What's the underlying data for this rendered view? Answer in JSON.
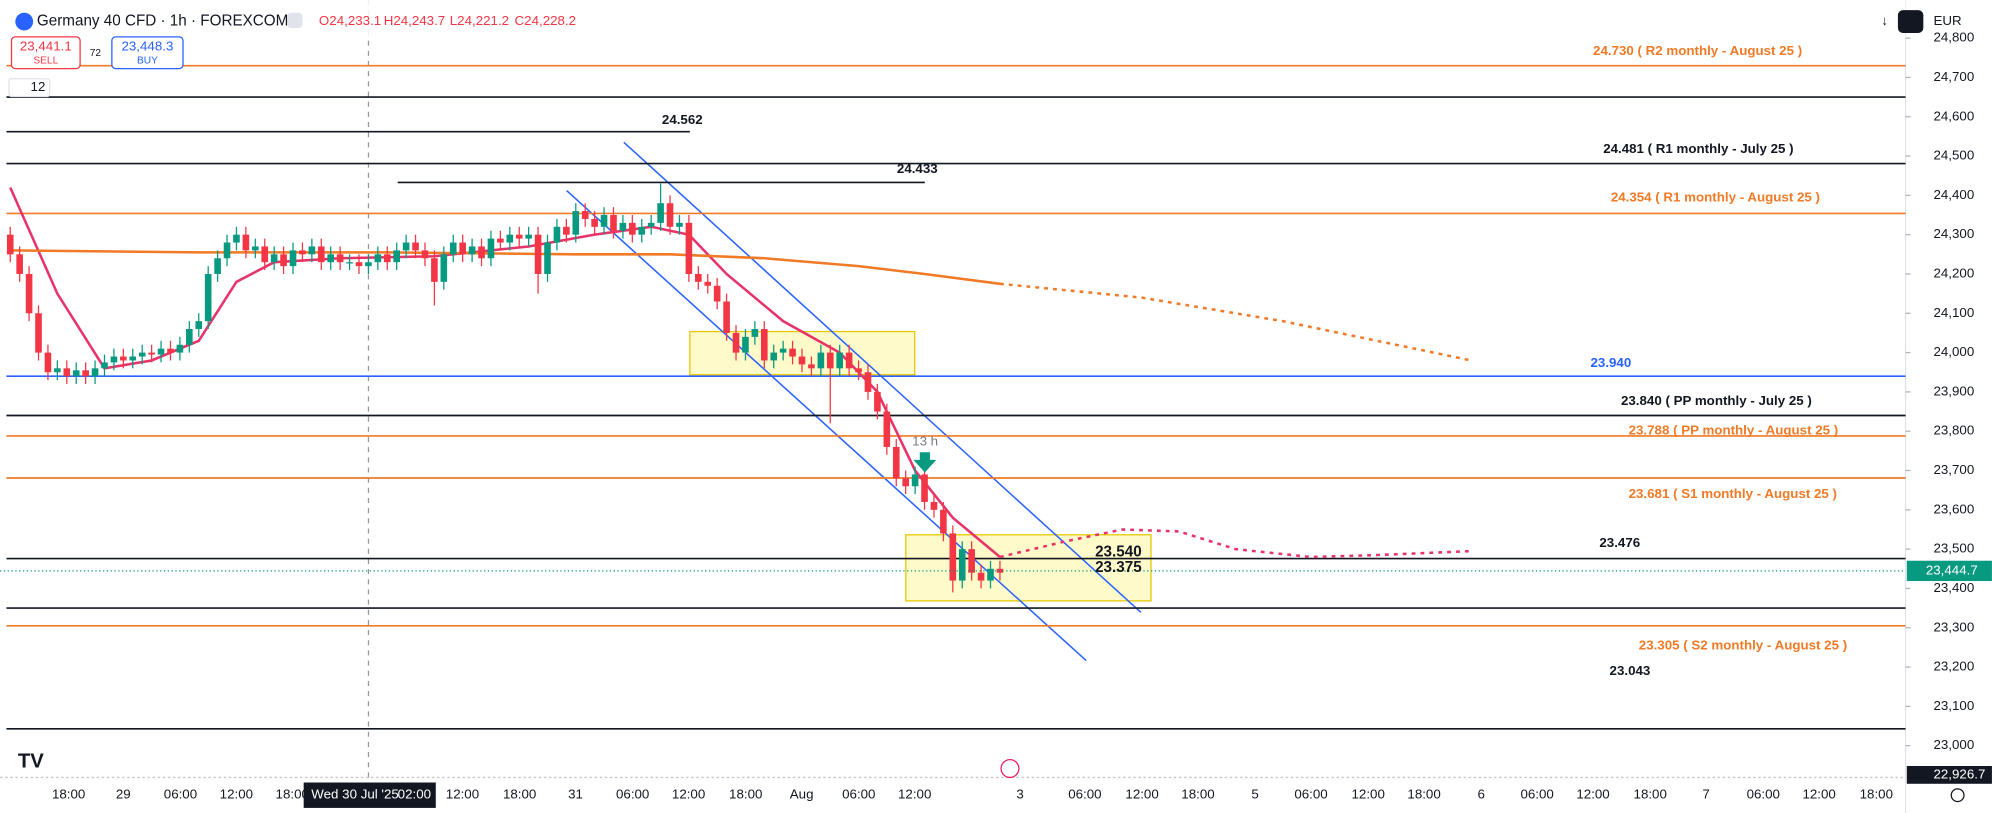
{
  "header": {
    "symbol": "Germany 40 CFD · 1h · FOREXCOM",
    "ohlc": [
      "O24,233.1",
      "H24,243.7",
      "L24,221.2",
      "C24,228.2"
    ],
    "sell_price": "23,441.1",
    "sell": "SELL",
    "spread": "72",
    "buy_price": "23,448.3",
    "buy": "BUY",
    "indicator_count": "12",
    "currency": "EUR"
  },
  "chart_data": {
    "type": "candlestick",
    "ylim": [
      22916,
      24897
    ],
    "yticks": [
      {
        "value": 23000,
        "label": "23,000"
      },
      {
        "value": 23100,
        "label": "23,100"
      },
      {
        "value": 23200,
        "label": "23,200"
      },
      {
        "value": 23300,
        "label": "23,300"
      },
      {
        "value": 23400,
        "label": "23,400"
      },
      {
        "value": 23500,
        "label": "23,500"
      },
      {
        "value": 23600,
        "label": "23,600"
      },
      {
        "value": 23700,
        "label": "23,700"
      },
      {
        "value": 23800,
        "label": "23,800"
      },
      {
        "value": 23900,
        "label": "23,900"
      },
      {
        "value": 24000,
        "label": "24,000"
      },
      {
        "value": 24100,
        "label": "24,100"
      },
      {
        "value": 24200,
        "label": "24,200"
      },
      {
        "value": 24300,
        "label": "24,300"
      },
      {
        "value": 24400,
        "label": "24,400"
      },
      {
        "value": 24500,
        "label": "24,500"
      },
      {
        "value": 24600,
        "label": "24,600"
      },
      {
        "value": 24700,
        "label": "24,700"
      },
      {
        "value": 24800,
        "label": "24,800"
      }
    ],
    "xtick_labels": [
      "18:00",
      "29",
      "06:00",
      "12:00",
      "18:00",
      "12:00",
      "18:00",
      "31",
      "06:00",
      "12:00",
      "18:00",
      "Aug",
      "06:00",
      "12:00",
      "3",
      "06:00",
      "12:00",
      "18:00",
      "5",
      "06:00",
      "12:00",
      "18:00",
      "6",
      "06:00",
      "12:00",
      "18:00",
      "7",
      "06:00",
      "12:00",
      "18:00"
    ],
    "crosshair_date": "Wed 30 Jul '25",
    "crosshair_time": "02:00",
    "last_price": {
      "value": 23444.7,
      "label": "23,444.7"
    },
    "bottom_price": "22,926.7",
    "up_color": "#089981",
    "down_color": "#f23645",
    "candles": [
      [
        24300,
        24320,
        24230,
        24250
      ],
      [
        24250,
        24270,
        24180,
        24200
      ],
      [
        24200,
        24220,
        24080,
        24100
      ],
      [
        24100,
        24120,
        23980,
        24000
      ],
      [
        24000,
        24020,
        23930,
        23950
      ],
      [
        23950,
        23980,
        23930,
        23960
      ],
      [
        23960,
        23980,
        23920,
        23940
      ],
      [
        23940,
        23975,
        23920,
        23955
      ],
      [
        23955,
        23975,
        23920,
        23940
      ],
      [
        23940,
        23980,
        23920,
        23960
      ],
      [
        23960,
        23995,
        23940,
        23975
      ],
      [
        23975,
        24010,
        23955,
        23990
      ],
      [
        23990,
        24010,
        23960,
        23980
      ],
      [
        23980,
        24010,
        23960,
        23990
      ],
      [
        23990,
        24020,
        23970,
        24000
      ],
      [
        24000,
        24020,
        23975,
        23995
      ],
      [
        23995,
        24030,
        23975,
        24010
      ],
      [
        24010,
        24030,
        23980,
        24000
      ],
      [
        24000,
        24040,
        23980,
        24020
      ],
      [
        24020,
        24080,
        24000,
        24060
      ],
      [
        24060,
        24100,
        24040,
        24080
      ],
      [
        24080,
        24220,
        24060,
        24200
      ],
      [
        24200,
        24260,
        24180,
        24240
      ],
      [
        24240,
        24300,
        24220,
        24280
      ],
      [
        24280,
        24320,
        24260,
        24300
      ],
      [
        24300,
        24320,
        24240,
        24260
      ],
      [
        24260,
        24290,
        24240,
        24270
      ],
      [
        24270,
        24290,
        24210,
        24230
      ],
      [
        24230,
        24270,
        24210,
        24250
      ],
      [
        24250,
        24270,
        24200,
        24220
      ],
      [
        24220,
        24280,
        24200,
        24260
      ],
      [
        24260,
        24280,
        24230,
        24250
      ],
      [
        24250,
        24290,
        24230,
        24270
      ],
      [
        24270,
        24290,
        24210,
        24230
      ],
      [
        24230,
        24270,
        24210,
        24250
      ],
      [
        24250,
        24270,
        24210,
        24230
      ],
      [
        24230,
        24250,
        24210,
        24230
      ],
      [
        24230,
        24250,
        24200,
        24220
      ],
      [
        24220,
        24250,
        24200,
        24230
      ],
      [
        24230,
        24270,
        24210,
        24250
      ],
      [
        24250,
        24270,
        24210,
        24230
      ],
      [
        24230,
        24280,
        24210,
        24260
      ],
      [
        24260,
        24300,
        24240,
        24280
      ],
      [
        24280,
        24300,
        24240,
        24260
      ],
      [
        24260,
        24280,
        24220,
        24240
      ],
      [
        24240,
        24260,
        24120,
        24180
      ],
      [
        24180,
        24270,
        24160,
        24250
      ],
      [
        24250,
        24300,
        24230,
        24280
      ],
      [
        24280,
        24300,
        24230,
        24250
      ],
      [
        24250,
        24290,
        24230,
        24270
      ],
      [
        24270,
        24290,
        24220,
        24240
      ],
      [
        24240,
        24310,
        24220,
        24290
      ],
      [
        24290,
        24310,
        24260,
        24280
      ],
      [
        24280,
        24320,
        24260,
        24300
      ],
      [
        24300,
        24320,
        24270,
        24290
      ],
      [
        24290,
        24320,
        24270,
        24300
      ],
      [
        24300,
        24320,
        24150,
        24200
      ],
      [
        24200,
        24300,
        24180,
        24280
      ],
      [
        24280,
        24340,
        24260,
        24320
      ],
      [
        24320,
        24340,
        24280,
        24300
      ],
      [
        24300,
        24380,
        24280,
        24360
      ],
      [
        24360,
        24380,
        24320,
        24340
      ],
      [
        24340,
        24360,
        24300,
        24320
      ],
      [
        24320,
        24370,
        24300,
        24350
      ],
      [
        24350,
        24370,
        24290,
        24310
      ],
      [
        24310,
        24350,
        24290,
        24330
      ],
      [
        24330,
        24350,
        24280,
        24300
      ],
      [
        24300,
        24340,
        24280,
        24320
      ],
      [
        24320,
        24350,
        24300,
        24330
      ],
      [
        24330,
        24430,
        24310,
        24380
      ],
      [
        24380,
        24400,
        24300,
        24320
      ],
      [
        24320,
        24350,
        24300,
        24330
      ],
      [
        24330,
        24350,
        24180,
        24200
      ],
      [
        24200,
        24220,
        24160,
        24180
      ],
      [
        24180,
        24200,
        24150,
        24170
      ],
      [
        24170,
        24190,
        24110,
        24130
      ],
      [
        24130,
        24150,
        24030,
        24050
      ],
      [
        24050,
        24070,
        23980,
        24000
      ],
      [
        24000,
        24060,
        23980,
        24040
      ],
      [
        24040,
        24080,
        24020,
        24060
      ],
      [
        24060,
        24080,
        23960,
        23980
      ],
      [
        23980,
        24020,
        23960,
        24000
      ],
      [
        24000,
        24030,
        23980,
        24010
      ],
      [
        24010,
        24030,
        23970,
        23990
      ],
      [
        23990,
        24010,
        23950,
        23970
      ],
      [
        23970,
        23990,
        23940,
        23960
      ],
      [
        23960,
        24020,
        23940,
        24000
      ],
      [
        24000,
        24020,
        23820,
        23960
      ],
      [
        23960,
        24020,
        23940,
        24000
      ],
      [
        24000,
        24020,
        23940,
        23960
      ],
      [
        23960,
        23980,
        23930,
        23950
      ],
      [
        23950,
        23970,
        23880,
        23900
      ],
      [
        23900,
        23920,
        23830,
        23850
      ],
      [
        23850,
        23870,
        23740,
        23760
      ],
      [
        23760,
        23780,
        23660,
        23680
      ],
      [
        23680,
        23700,
        23640,
        23660
      ],
      [
        23660,
        23710,
        23640,
        23690
      ],
      [
        23690,
        23710,
        23600,
        23620
      ],
      [
        23620,
        23640,
        23580,
        23600
      ],
      [
        23600,
        23620,
        23520,
        23540
      ],
      [
        23540,
        23560,
        23390,
        23420
      ],
      [
        23420,
        23520,
        23400,
        23500
      ],
      [
        23500,
        23520,
        23420,
        23440
      ],
      [
        23440,
        23460,
        23400,
        23420
      ],
      [
        23420,
        23470,
        23400,
        23450
      ],
      [
        23450,
        23470,
        23420,
        23440
      ]
    ],
    "series": [
      {
        "color": "#e8336a",
        "dash": false,
        "x": [
          0,
          5,
          10,
          15,
          20,
          24,
          28,
          35,
          45,
          55,
          62,
          68,
          72,
          76,
          82,
          88,
          92,
          96,
          100,
          105
        ],
        "values": [
          24420,
          24150,
          23960,
          23980,
          24030,
          24180,
          24230,
          24240,
          24245,
          24270,
          24300,
          24320,
          24300,
          24200,
          24080,
          24000,
          23900,
          23700,
          23580,
          23480
        ]
      },
      {
        "color": "#e8336a",
        "dash": true,
        "x": [
          105,
          112,
          118,
          124,
          130,
          138,
          145,
          155
        ],
        "values": [
          23480,
          23520,
          23550,
          23545,
          23500,
          23480,
          23485,
          23495
        ]
      },
      {
        "color": "#f07a26",
        "dash": false,
        "x": [
          0,
          20,
          40,
          60,
          70,
          80,
          90,
          97,
          105
        ],
        "values": [
          24260,
          24255,
          24255,
          24250,
          24250,
          24240,
          24220,
          24200,
          24175
        ]
      },
      {
        "color": "#f07a26",
        "dash": true,
        "x": [
          105,
          120,
          135,
          155
        ],
        "values": [
          24175,
          24140,
          24080,
          23980
        ]
      }
    ],
    "levels": [
      {
        "value": 24730,
        "label": "24.730 ( R2 monthly - August 25 )",
        "color": "#f07a26"
      },
      {
        "value": 24650,
        "color": "#131722"
      },
      {
        "value": 24562,
        "label": "24.562",
        "color": "#131722"
      },
      {
        "value": 24481,
        "label": "24.481 ( R1 monthly - July 25 )",
        "color": "#131722"
      },
      {
        "value": 24433,
        "label": "24.433",
        "color": "#131722"
      },
      {
        "value": 24354,
        "label": "24.354 ( R1 monthly - August 25 )",
        "color": "#f07a26"
      },
      {
        "value": 23940,
        "label": "23.940",
        "color": "#2962ff"
      },
      {
        "value": 23840,
        "label": "23.840 ( PP monthly - July 25 )",
        "color": "#131722"
      },
      {
        "value": 23788,
        "label": "23.788 ( PP monthly - August 25 )",
        "color": "#f07a26"
      },
      {
        "value": 23681,
        "label": "23.681 ( S1 monthly - August 25 )",
        "color": "#f07a26"
      },
      {
        "value": 23476,
        "label": "23.476",
        "color": "#131722"
      },
      {
        "value": 23350,
        "color": "#131722"
      },
      {
        "value": 23305,
        "label": "23.305 ( S2 monthly - August 25 )",
        "color": "#f07a26"
      },
      {
        "value": 23043,
        "label": "23.043",
        "color": "#131722"
      }
    ],
    "box_labels": [
      "23.540",
      "23.375"
    ],
    "arrow_label": "13 h"
  }
}
